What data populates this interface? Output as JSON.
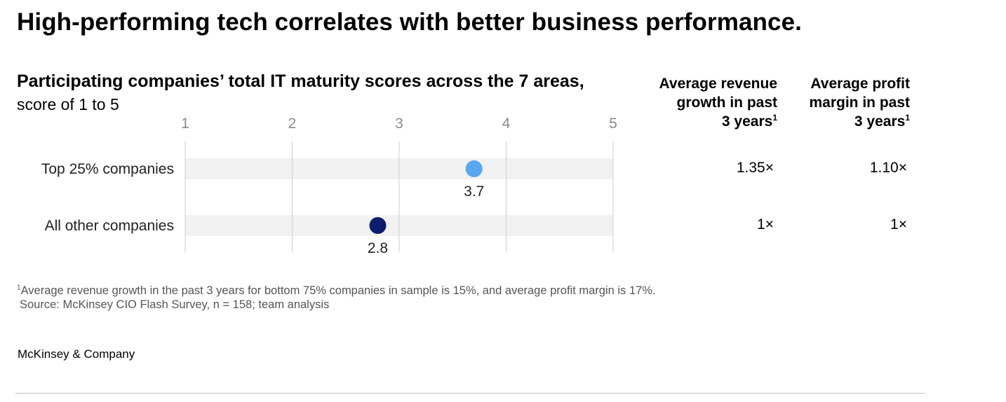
{
  "title": "High-performing tech correlates with better business performance.",
  "chart_data": {
    "type": "scatter",
    "title": "Participating companies’ total IT maturity scores across the 7 areas,",
    "subtitle": "score of 1 to 5",
    "x_ticks": [
      "1",
      "2",
      "3",
      "4",
      "5"
    ],
    "xlim": [
      1,
      5
    ],
    "categories": [
      "Top 25% companies",
      "All other companies"
    ],
    "values": [
      3.7,
      2.8
    ],
    "value_labels": [
      "3.7",
      "2.8"
    ],
    "colors": [
      "#56a8f0",
      "#0d1d6e"
    ],
    "grid": true
  },
  "columns": {
    "revenue": {
      "header_lines": [
        "Average revenue",
        "growth in past",
        "3 years"
      ],
      "footnote_mark": "1",
      "values": [
        "1.35×",
        "1×"
      ]
    },
    "profit": {
      "header_lines": [
        "Average profit",
        "margin in past",
        "3 years"
      ],
      "footnote_mark": "1",
      "values": [
        "1.10×",
        "1×"
      ]
    }
  },
  "footnote": {
    "mark": "1",
    "text": "Average revenue growth in the past 3 years for bottom 75% companies in sample is 15%, and average profit margin is 17%."
  },
  "source": "Source: McKinsey CIO Flash Survey, n = 158; team analysis",
  "brand": "McKinsey & Company"
}
